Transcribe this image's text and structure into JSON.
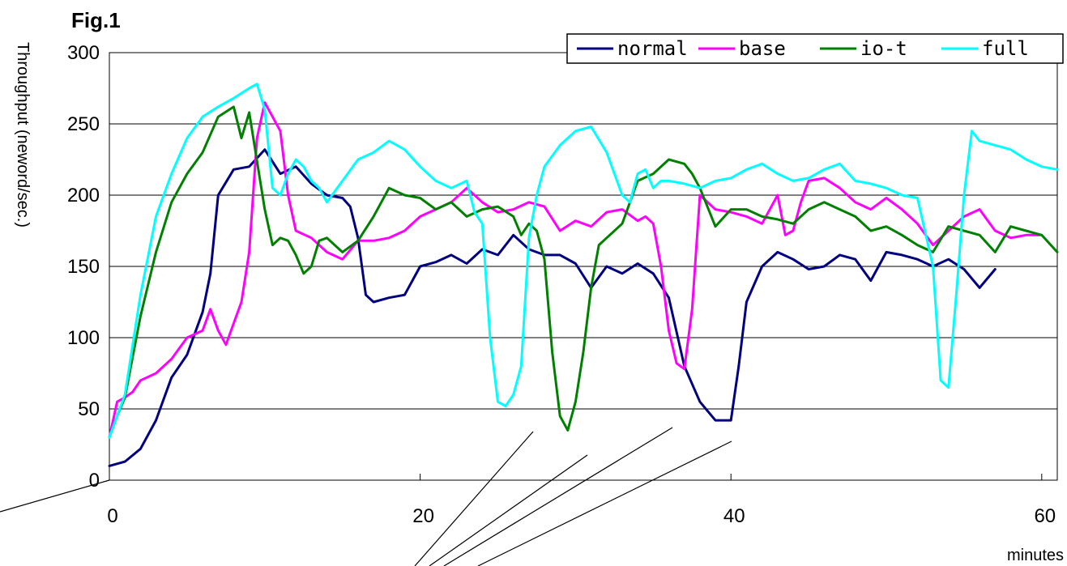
{
  "figure_label": "Fig.1",
  "chart_data": {
    "type": "line",
    "title": "",
    "xlabel": "minutes",
    "ylabel": "Throughput (neword/sec.)",
    "xlim": [
      0,
      61
    ],
    "ylim": [
      0,
      300
    ],
    "x_ticks": [
      "0",
      "20",
      "40",
      "60"
    ],
    "y_ticks": [
      "0",
      "50",
      "100",
      "150",
      "200",
      "250",
      "300"
    ],
    "grid": "horizontal",
    "legend_position": "top-right",
    "series": [
      {
        "name": "normal",
        "color": "#000080",
        "x": [
          0,
          1,
          2,
          3,
          4,
          5,
          6,
          6.5,
          7,
          8,
          9,
          10,
          11,
          12,
          13,
          14,
          15,
          15.5,
          16,
          16.5,
          17,
          18,
          19,
          20,
          21,
          22,
          23,
          24,
          25,
          26,
          27,
          28,
          29,
          30,
          31,
          32,
          33,
          34,
          35,
          36,
          37,
          38,
          39,
          40,
          40.5,
          41,
          42,
          43,
          44,
          45,
          46,
          47,
          48,
          49,
          50,
          51,
          52,
          53,
          54,
          55,
          56,
          57
        ],
        "values": [
          10,
          13,
          22,
          42,
          72,
          88,
          118,
          145,
          200,
          218,
          220,
          232,
          215,
          220,
          208,
          200,
          198,
          192,
          170,
          130,
          125,
          128,
          130,
          150,
          153,
          158,
          152,
          162,
          158,
          172,
          162,
          158,
          158,
          152,
          135,
          150,
          145,
          152,
          145,
          128,
          80,
          55,
          42,
          42,
          80,
          125,
          150,
          160,
          155,
          148,
          150,
          158,
          155,
          140,
          160,
          158,
          155,
          150,
          155,
          148,
          135,
          148
        ]
      },
      {
        "name": "base",
        "color": "#ff00ff",
        "x": [
          0,
          0.5,
          1,
          1.5,
          2,
          3,
          4,
          5,
          6,
          6.5,
          7,
          7.5,
          8,
          8.5,
          9,
          9.5,
          10,
          10.5,
          11,
          11.5,
          12,
          13,
          14,
          15,
          16,
          17,
          18,
          19,
          20,
          21,
          22,
          23,
          24,
          25,
          26,
          27,
          28,
          29,
          30,
          31,
          32,
          33,
          34,
          34.5,
          35,
          35.5,
          36,
          36.5,
          37,
          37.5,
          38,
          39,
          40,
          41,
          42,
          43,
          43.5,
          44,
          44.5,
          45,
          46,
          47,
          48,
          49,
          50,
          51,
          52,
          53,
          54,
          55,
          56,
          57,
          58,
          59,
          60
        ],
        "values": [
          30,
          55,
          58,
          62,
          70,
          75,
          85,
          100,
          105,
          120,
          105,
          95,
          110,
          125,
          160,
          240,
          265,
          255,
          245,
          200,
          175,
          170,
          160,
          155,
          168,
          168,
          170,
          175,
          185,
          190,
          195,
          205,
          195,
          188,
          190,
          195,
          192,
          175,
          182,
          178,
          188,
          190,
          182,
          185,
          180,
          150,
          105,
          82,
          78,
          120,
          200,
          190,
          188,
          185,
          180,
          200,
          172,
          175,
          195,
          210,
          212,
          205,
          195,
          190,
          198,
          190,
          180,
          165,
          175,
          185,
          190,
          175,
          170,
          172,
          172
        ]
      },
      {
        "name": "io-t",
        "color": "#008000",
        "x": [
          0,
          0.5,
          1,
          2,
          3,
          4,
          5,
          6,
          7,
          8,
          8.5,
          9,
          10,
          10.5,
          11,
          11.5,
          12,
          12.5,
          13,
          13.5,
          14,
          14.5,
          15,
          16,
          17,
          18,
          19,
          20,
          21,
          22,
          23,
          24,
          25,
          26,
          26.5,
          27,
          27.5,
          28,
          28.5,
          29,
          29.5,
          30,
          30.5,
          31,
          31.5,
          32,
          33,
          34,
          35,
          36,
          37,
          37.5,
          38,
          39,
          40,
          41,
          42,
          43,
          44,
          45,
          46,
          47,
          48,
          49,
          50,
          51,
          52,
          53,
          54,
          55,
          56,
          57,
          58,
          59,
          60,
          61
        ],
        "values": [
          30,
          45,
          58,
          115,
          160,
          195,
          215,
          230,
          255,
          262,
          240,
          258,
          190,
          165,
          170,
          168,
          158,
          145,
          150,
          168,
          170,
          165,
          160,
          168,
          185,
          205,
          200,
          198,
          190,
          195,
          185,
          190,
          192,
          185,
          172,
          180,
          175,
          155,
          90,
          45,
          35,
          55,
          90,
          135,
          165,
          170,
          180,
          210,
          215,
          225,
          222,
          215,
          205,
          178,
          190,
          190,
          185,
          183,
          180,
          190,
          195,
          190,
          185,
          175,
          178,
          172,
          165,
          160,
          178,
          175,
          172,
          160,
          178,
          175,
          172,
          160
        ]
      },
      {
        "name": "full",
        "color": "#00ffff",
        "x": [
          0,
          1,
          2,
          3,
          4,
          5,
          6,
          7,
          8,
          9,
          9.5,
          10,
          10.5,
          11,
          11.5,
          12,
          12.5,
          13,
          13.5,
          14,
          15,
          16,
          17,
          18,
          19,
          20,
          21,
          22,
          23,
          23.5,
          24,
          24.5,
          25,
          25.5,
          26,
          26.5,
          27,
          27.5,
          28,
          29,
          30,
          31,
          32,
          33,
          33.5,
          34,
          34.5,
          35,
          35.5,
          36,
          37,
          38,
          39,
          40,
          41,
          42,
          43,
          44,
          45,
          46,
          47,
          48,
          49,
          50,
          51,
          52,
          53,
          53.5,
          54,
          54.5,
          55,
          55.5,
          56,
          57,
          58,
          59,
          60,
          61
        ],
        "values": [
          30,
          60,
          130,
          185,
          215,
          240,
          255,
          262,
          268,
          275,
          278,
          260,
          205,
          200,
          215,
          225,
          220,
          210,
          205,
          195,
          210,
          225,
          230,
          238,
          232,
          220,
          210,
          205,
          210,
          188,
          180,
          100,
          55,
          52,
          60,
          80,
          170,
          200,
          220,
          235,
          245,
          248,
          230,
          200,
          195,
          215,
          218,
          205,
          210,
          210,
          208,
          205,
          210,
          212,
          218,
          222,
          215,
          210,
          212,
          218,
          222,
          210,
          208,
          205,
          200,
          198,
          150,
          70,
          65,
          130,
          200,
          245,
          238,
          235,
          232,
          225,
          220,
          218
        ]
      }
    ]
  }
}
